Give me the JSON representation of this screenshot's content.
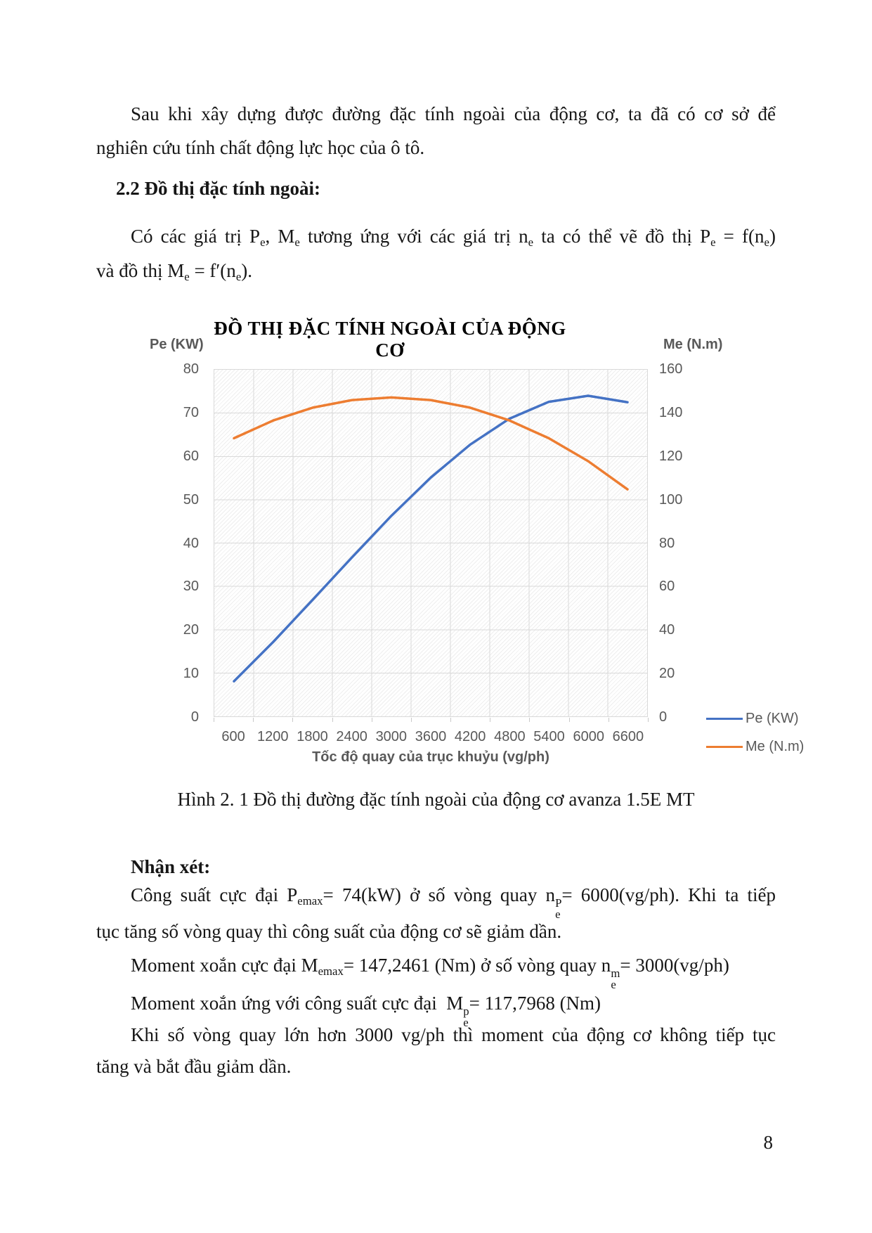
{
  "page": {
    "number": "8"
  },
  "intro": {
    "line1": "Sau khi xây dựng được đường đặc tính ngoài của động cơ, ta đã có cơ sở để",
    "line2": "nghiên cứu tính chất động lực học của ô tô."
  },
  "section": {
    "heading": "2.2 Đồ thị đặc tính ngoài:"
  },
  "para": {
    "line1": [
      {
        "t": "Có các giá trị P"
      },
      {
        "t": "e",
        "style": "sub"
      },
      {
        "t": ", M"
      },
      {
        "t": "e",
        "style": "sub"
      },
      {
        "t": " tương ứng với các giá trị n"
      },
      {
        "t": "e",
        "style": "sub"
      },
      {
        "t": " ta có thể vẽ đồ thị P"
      },
      {
        "t": "e",
        "style": "sub"
      },
      {
        "t": " = f(n"
      },
      {
        "t": "e",
        "style": "sub"
      },
      {
        "t": ")"
      }
    ],
    "line2": [
      {
        "t": "và đồ thị M"
      },
      {
        "t": "e",
        "style": "sub"
      },
      {
        "t": " = f′(n"
      },
      {
        "t": "e",
        "style": "sub"
      },
      {
        "t": ")."
      }
    ]
  },
  "figure": {
    "caption": "Hình 2. 1 Đồ thị đường đặc tính ngoài của động cơ avanza 1.5E MT"
  },
  "remarks": {
    "heading": "Nhận xét:",
    "line1": [
      {
        "t": "Công suất cực đại P"
      },
      {
        "t": "emax",
        "style": "sub"
      },
      {
        "t": "= 74(kW) ở số vòng quay n"
      },
      {
        "stack": {
          "sup": "P",
          "sub": "e"
        }
      },
      {
        "t": "= 6000(vg/ph). Khi ta tiếp"
      }
    ],
    "line2": "tục tăng số vòng quay thì công suất của động cơ sẽ giảm dần.",
    "line3": [
      {
        "t": "Moment xoắn cực đại M"
      },
      {
        "t": "emax",
        "style": "sub"
      },
      {
        "t": "= 147,2461 (Nm) ở số vòng quay n"
      },
      {
        "stack": {
          "sup": "m",
          "sub": "e"
        }
      },
      {
        "t": "= 3000(vg/ph)"
      }
    ],
    "line4": [
      {
        "t": "Moment xoắn ứng với công suất cực đại  M"
      },
      {
        "stack": {
          "sup": "p",
          "sub": "e"
        }
      },
      {
        "t": "= 117,7968 (Nm)"
      }
    ],
    "line5": "Khi số vòng quay lớn hơn 3000 vg/ph thì moment của động cơ không tiếp tục",
    "line6": "tăng và bắt đầu giảm dần."
  },
  "chart_data": {
    "type": "line",
    "title": "ĐỒ THỊ ĐẶC TÍNH NGOÀI CỦA ĐỘNG CƠ",
    "xlabel": "Tốc độ quay của trục khuỷu (vg/ph)",
    "x": [
      600,
      1200,
      1800,
      2400,
      3000,
      3600,
      4200,
      4800,
      5400,
      6000,
      6600
    ],
    "left_axis": {
      "label": "Pe (KW)",
      "ylim": [
        0,
        80
      ],
      "step": 10
    },
    "right_axis": {
      "label": "Me (N.m)",
      "ylim": [
        0,
        160
      ],
      "step": 20
    },
    "series": [
      {
        "name": "Pe (KW)",
        "axis": "left",
        "color": "#4472C4",
        "values": [
          8.1,
          17.2,
          26.9,
          36.7,
          46.3,
          55.1,
          62.7,
          68.7,
          72.6,
          74,
          72.5
        ]
      },
      {
        "name": "Me (N.m)",
        "axis": "right",
        "color": "#ED7D31",
        "values": [
          128.4,
          136.6,
          142.5,
          146,
          147.2,
          146,
          142.5,
          136.6,
          128.4,
          117.8,
          104.8
        ]
      }
    ],
    "grid": true,
    "legend_position": "right-bottom",
    "plot_background": "diagonal-hatch",
    "gridline_color": "#d9d9d9",
    "tick_label_color": "#595959"
  }
}
